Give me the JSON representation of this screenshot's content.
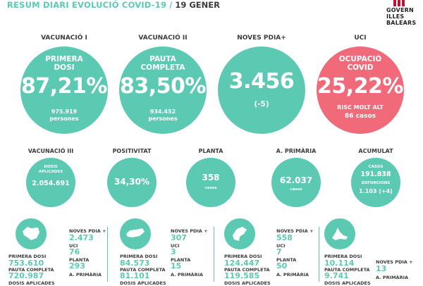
{
  "header": {
    "title": "RESUM DIARI EVOLUCIÓ COVID-19",
    "separator": "/",
    "date": "19 GENER"
  },
  "logo": {
    "line1": "GOVERN",
    "line2": "ILLES",
    "line3": "BALEARS"
  },
  "big": [
    {
      "title": "VACUNACIÓ I",
      "label1": "PRIMERA",
      "label2": "DOSI",
      "value": "87,21%",
      "sub1": "975.919",
      "sub2": "persones"
    },
    {
      "title": "VACUNACIÓ II",
      "label1": "PAUTA",
      "label2": "COMPLETA",
      "value": "83,50%",
      "sub1": "934.452",
      "sub2": "persones"
    },
    {
      "title": "NOVES PDIA+",
      "value": "3.456",
      "sub1": "(-5)"
    },
    {
      "title": "UCI",
      "label1": "OCUPACIÓ",
      "label2": "COVID",
      "value": "25,22%",
      "sub1": "RISC MOLT ALT",
      "sub2": "86 casos"
    }
  ],
  "mid": [
    {
      "title": "VACUNACIÓ III",
      "top": "DOSIS",
      "top2": "APLICADES",
      "value": "2.054.691",
      "bottom": ""
    },
    {
      "title": "POSITIVITAT",
      "value": "34,30%"
    },
    {
      "title": "PLANTA",
      "value": "358",
      "bottom": "casos"
    },
    {
      "title": "A. PRIMÀRIA",
      "value": "62.037",
      "bottom": "casos"
    },
    {
      "title": "ACUMULAT",
      "top": "CASOS",
      "value": "191.838",
      "top2": "DEFUNCIONS",
      "value2": "1.103 (+4)"
    }
  ],
  "islands": [
    {
      "icon": "mallorca-map-icon",
      "pd_label": "PRIMERA DOSI",
      "pd": "753.610",
      "pc_label": "PAUTA COMPLETA",
      "pc": "720.987",
      "da_label": "DOSIS APLICADES",
      "np_label": "NOVES PDIA +",
      "np": "2.473",
      "uci_label": "UCI",
      "uci": "76",
      "planta_label": "PLANTA",
      "planta": "293",
      "ap_label": "A. PRIMÀRIA"
    },
    {
      "icon": "menorca-map-icon",
      "pd_label": "PRIMERA DOSI",
      "pd": "84.573",
      "pc_label": "PAUTA COMPLETA",
      "pc": "81.101",
      "da_label": "DOSIS APLICADES",
      "np_label": "NOVES PDIA +",
      "np": "307",
      "uci_label": "UCI",
      "uci": "3",
      "planta_label": "PLANTA",
      "planta": "15",
      "ap_label": "A. PRIMÀRIA"
    },
    {
      "icon": "eivissa-map-icon",
      "pd_label": "PRIMERA DOSI",
      "pd": "124.447",
      "pc_label": "PAUTA COMPLETA",
      "pc": "119.585",
      "da_label": "DOSIS APLICADES",
      "np_label": "NOVES PDIA +",
      "np": "558",
      "uci_label": "UCI",
      "uci": "7",
      "planta_label": "PLANTA",
      "planta": "50",
      "ap_label": "A. PRIMÀRIA"
    },
    {
      "icon": "formentera-map-icon",
      "pd_label": "PRIMERA DOSI",
      "pd": "10.114",
      "pc_label": "PAUTA COMPLETA",
      "pc": "9.741",
      "da_label": "DOSIS APLICADES",
      "np_label": "NOVES PDIA +",
      "np": "13",
      "ap_label": "A. PRIMÀRIA"
    }
  ]
}
